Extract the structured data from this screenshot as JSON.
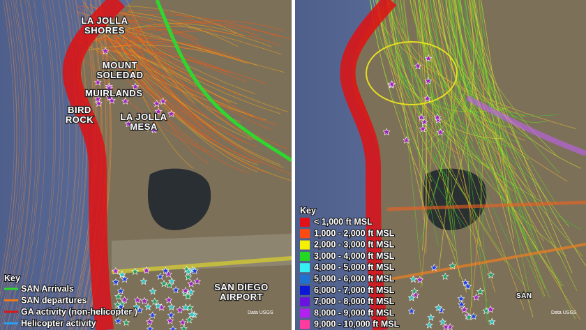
{
  "left_panel": {
    "places": [
      {
        "lines": [
          "LA JOLLA",
          "SHORES"
        ]
      },
      {
        "lines": [
          "MOUNT",
          "SOLEDAD"
        ]
      },
      {
        "lines": [
          "MUIRLANDS"
        ]
      },
      {
        "lines": [
          "BIRD",
          "ROCK"
        ]
      },
      {
        "lines": [
          "LA JOLLA",
          "MESA"
        ]
      },
      {
        "lines": [
          "SAN DIEGO",
          "AIRPORT"
        ]
      }
    ],
    "key": {
      "title": "Key",
      "items": [
        {
          "label": "SAN Arrivals",
          "color": "#2fd62f"
        },
        {
          "label": "SAN departures",
          "color": "#f07a1a"
        },
        {
          "label": "GA activity (non-helicopter )",
          "color": "#d81818"
        },
        {
          "label": "Helicopter activity",
          "color": "#2aa0f0"
        }
      ]
    },
    "credits": [
      "Data USGS"
    ]
  },
  "right_panel": {
    "places": [
      {
        "lines": [
          "SAN"
        ]
      }
    ],
    "key": {
      "title": "Key",
      "items": [
        {
          "label": "< 1,000 ft MSL",
          "color": "#e3101a"
        },
        {
          "label": "1,000  - 2,000 ft MSL",
          "color": "#ff4a12"
        },
        {
          "label": "2,000  - 3,000 ft MSL",
          "color": "#f4f000"
        },
        {
          "label": "3,000  - 4,000 ft MSL",
          "color": "#22d822"
        },
        {
          "label": "4,000  - 5,000 ft MSL",
          "color": "#34f0f0"
        },
        {
          "label": "5,000  - 6,000 ft MSL",
          "color": "#1e72d2"
        },
        {
          "label": "6,000  - 7,000 ft MSL",
          "color": "#0c18d8"
        },
        {
          "label": "7,000  - 8,000 ft MSL",
          "color": "#6a12e0"
        },
        {
          "label": "8,000  - 9,000 ft MSL",
          "color": "#b420f0"
        },
        {
          "label": "9,000  - 10,000 ft MSL",
          "color": "#ff3aa0"
        }
      ]
    },
    "credits": [
      "Data USGS"
    ]
  }
}
